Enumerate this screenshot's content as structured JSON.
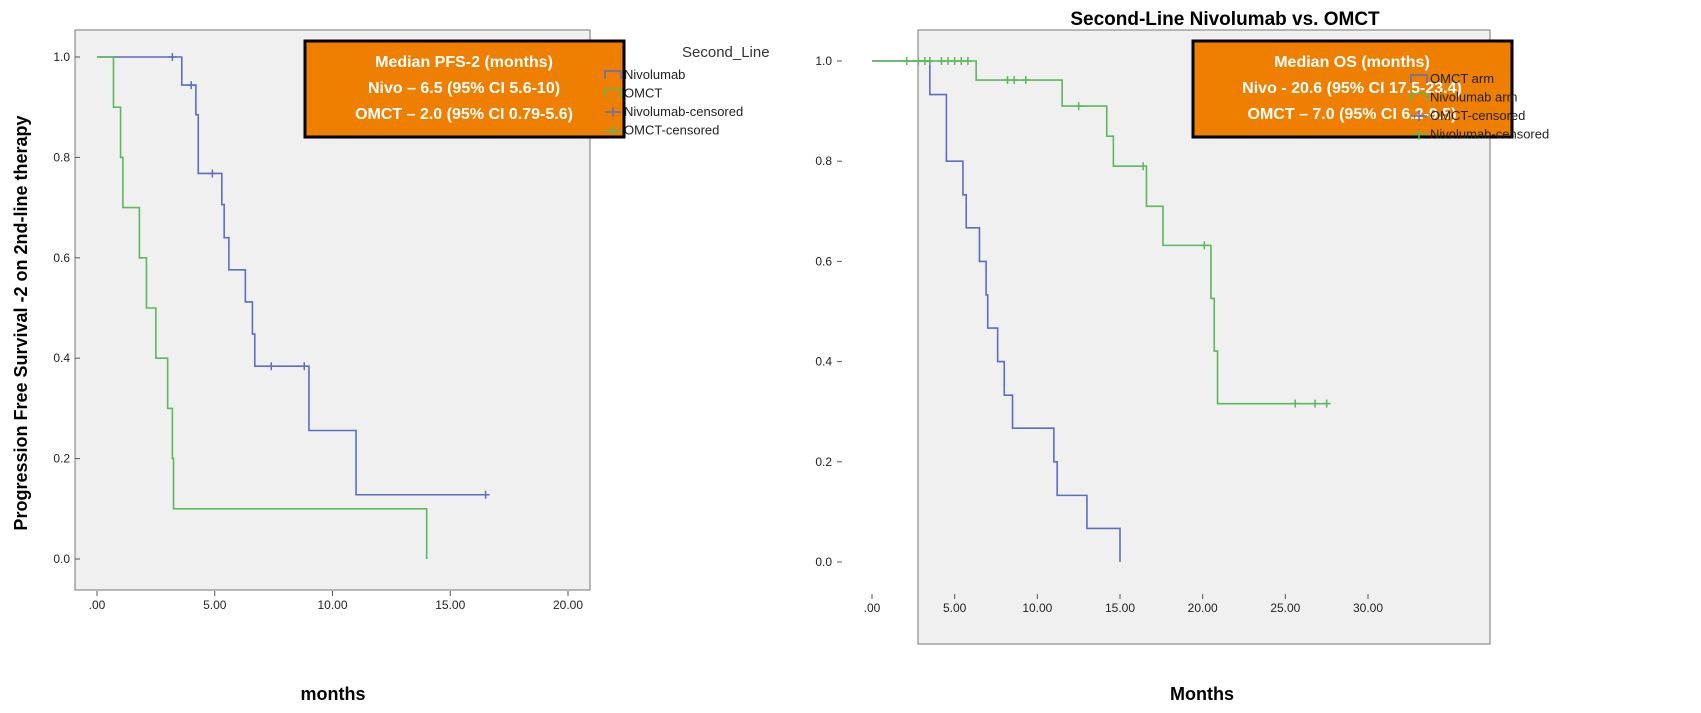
{
  "colors": {
    "series_a": "#5b6ec2",
    "series_b": "#5cb85c",
    "box": "#ee7f00",
    "plot_bg": "#f0f0f0"
  },
  "chart_data": [
    {
      "type": "line",
      "step": "kaplan-meier",
      "title": "",
      "xlabel": "months",
      "ylabel": "Progression Free Survival -2 on 2nd-line therapy",
      "xlim": [
        0,
        20
      ],
      "ylim": [
        0,
        1
      ],
      "xticks": [
        ".00",
        "5.00",
        "10.00",
        "15.00",
        "20.00"
      ],
      "yticks": [
        "0.0",
        "0.2",
        "0.4",
        "0.6",
        "0.8",
        "1.0"
      ],
      "legend_title": "Second_Line",
      "legend_position": "right",
      "legend": [
        "Nivolumab",
        "OMCT",
        "Nivolumab-censored",
        "OMCT-censored"
      ],
      "annotation": [
        "Median PFS-2 (months)",
        "Nivo – 6.5  (95% CI 5.6-10)",
        "OMCT – 2.0  (95% CI 0.79-5.6)"
      ],
      "series": [
        {
          "name": "Nivolumab",
          "color_key": "series_a",
          "steps": [
            [
              0,
              1.0
            ],
            [
              3.6,
              0.944
            ],
            [
              4.2,
              0.885
            ],
            [
              4.3,
              0.768
            ],
            [
              5.3,
              0.706
            ],
            [
              5.4,
              0.64
            ],
            [
              5.6,
              0.576
            ],
            [
              6.3,
              0.512
            ],
            [
              6.6,
              0.448
            ],
            [
              6.7,
              0.384
            ],
            [
              9.0,
              0.256
            ],
            [
              11.0,
              0.128
            ],
            [
              16.5,
              0.128
            ]
          ],
          "censored": [
            [
              3.2,
              1.0
            ],
            [
              4.0,
              0.944
            ],
            [
              4.9,
              0.768
            ],
            [
              7.4,
              0.384
            ],
            [
              8.8,
              0.384
            ],
            [
              16.5,
              0.128
            ]
          ]
        },
        {
          "name": "OMCT",
          "color_key": "series_b",
          "steps": [
            [
              0,
              1.0
            ],
            [
              0.7,
              0.9
            ],
            [
              1.0,
              0.8
            ],
            [
              1.1,
              0.7
            ],
            [
              1.8,
              0.6
            ],
            [
              2.1,
              0.5
            ],
            [
              2.5,
              0.4
            ],
            [
              3.0,
              0.3
            ],
            [
              3.2,
              0.2
            ],
            [
              3.25,
              0.1
            ],
            [
              14.0,
              0.0
            ]
          ],
          "censored": []
        }
      ]
    },
    {
      "type": "line",
      "step": "kaplan-meier",
      "title": "Second-Line Nivolumab vs. OMCT",
      "xlabel": "Months",
      "ylabel": "",
      "xlim": [
        0,
        30
      ],
      "ylim": [
        0,
        1
      ],
      "xticks": [
        ".00",
        "5.00",
        "10.00",
        "15.00",
        "20.00",
        "25.00",
        "30.00"
      ],
      "yticks": [
        "0.0",
        "0.2",
        "0.4",
        "0.6",
        "0.8",
        "1.0"
      ],
      "legend_position": "right",
      "legend": [
        "OMCT arm",
        "Nivolumab arm",
        "OMCT-censored",
        "Nivolumab-censored"
      ],
      "annotation": [
        "Median OS (months)",
        "Nivo - 20.6  (95% CI 17.5-23.4)",
        "OMCT – 7.0  (95% CI 6.2-9.5)"
      ],
      "series": [
        {
          "name": "OMCT arm",
          "color_key": "series_a",
          "steps": [
            [
              0,
              1.0
            ],
            [
              3.5,
              0.933
            ],
            [
              4.5,
              0.8
            ],
            [
              5.5,
              0.733
            ],
            [
              5.7,
              0.667
            ],
            [
              6.5,
              0.6
            ],
            [
              6.9,
              0.533
            ],
            [
              7.0,
              0.467
            ],
            [
              7.6,
              0.4
            ],
            [
              8.0,
              0.333
            ],
            [
              8.5,
              0.267
            ],
            [
              11.0,
              0.2
            ],
            [
              11.2,
              0.133
            ],
            [
              13.0,
              0.067
            ],
            [
              15.0,
              0.0
            ]
          ],
          "censored": []
        },
        {
          "name": "Nivolumab arm",
          "color_key": "series_b",
          "steps": [
            [
              0,
              1.0
            ],
            [
              6.3,
              0.962
            ],
            [
              11.5,
              0.91
            ],
            [
              14.2,
              0.85
            ],
            [
              14.6,
              0.79
            ],
            [
              16.6,
              0.71
            ],
            [
              17.6,
              0.632
            ],
            [
              20.5,
              0.526
            ],
            [
              20.7,
              0.421
            ],
            [
              20.9,
              0.316
            ],
            [
              27.5,
              0.316
            ]
          ],
          "censored": [
            [
              2.1,
              1.0
            ],
            [
              2.8,
              1.0
            ],
            [
              3.2,
              1.0
            ],
            [
              3.5,
              1.0
            ],
            [
              4.2,
              1.0
            ],
            [
              4.6,
              1.0
            ],
            [
              5.0,
              1.0
            ],
            [
              5.4,
              1.0
            ],
            [
              5.8,
              1.0
            ],
            [
              8.2,
              0.962
            ],
            [
              8.6,
              0.962
            ],
            [
              9.3,
              0.962
            ],
            [
              12.5,
              0.91
            ],
            [
              16.4,
              0.79
            ],
            [
              20.1,
              0.632
            ],
            [
              25.6,
              0.316
            ],
            [
              26.8,
              0.316
            ],
            [
              27.5,
              0.316
            ]
          ]
        }
      ]
    }
  ]
}
